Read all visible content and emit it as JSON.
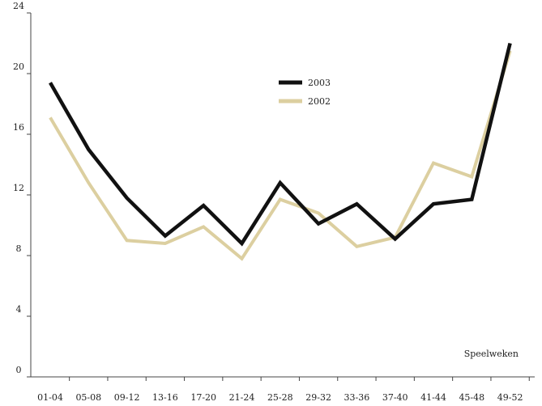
{
  "chart_data": {
    "type": "line",
    "categories": [
      "01-04",
      "05-08",
      "09-12",
      "13-16",
      "17-20",
      "21-24",
      "25-28",
      "29-32",
      "33-36",
      "37-40",
      "41-44",
      "45-48",
      "49-52"
    ],
    "series": [
      {
        "name": "2003",
        "color": "#111111",
        "values": [
          19.4,
          15.0,
          11.8,
          9.3,
          11.3,
          8.8,
          12.8,
          10.1,
          11.4,
          9.1,
          11.4,
          11.7,
          22.0
        ]
      },
      {
        "name": "2002",
        "color": "#dccfa0",
        "values": [
          17.1,
          12.8,
          9.0,
          8.8,
          9.9,
          7.8,
          11.7,
          10.8,
          8.6,
          9.2,
          14.1,
          13.2,
          21.5
        ]
      }
    ],
    "xlabel": "Speelweken",
    "ylabel": "",
    "ylim": [
      0,
      24
    ],
    "yticks": [
      0,
      4,
      8,
      12,
      16,
      20,
      24
    ],
    "grid": false,
    "legend": "upper-center"
  }
}
